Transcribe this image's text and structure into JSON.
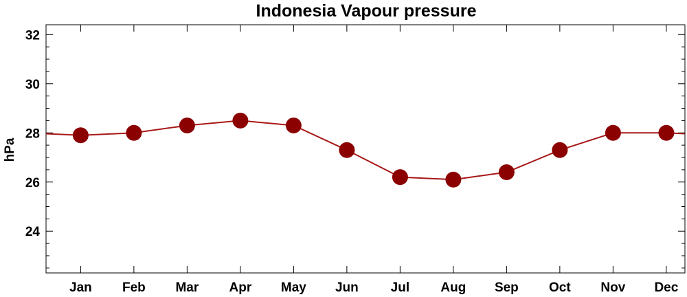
{
  "chart_data": {
    "type": "line",
    "title": "Indonesia Vapour pressure",
    "xlabel": "",
    "ylabel": "hPa",
    "categories": [
      "Jan",
      "Feb",
      "Mar",
      "Apr",
      "May",
      "Jun",
      "Jul",
      "Aug",
      "Sep",
      "Oct",
      "Nov",
      "Dec"
    ],
    "series": [
      {
        "values": [
          27.9,
          28.0,
          28.3,
          28.5,
          28.3,
          27.3,
          26.2,
          26.1,
          26.4,
          27.3,
          28.0,
          28.0
        ]
      }
    ],
    "ylim": [
      22.3,
      32.4
    ],
    "yticks": [
      24,
      26,
      28,
      30,
      32
    ],
    "y_minor_step": 0.5,
    "grid": false,
    "legend": "none",
    "line_color": "#a81818",
    "marker_color": "#8b0000"
  }
}
